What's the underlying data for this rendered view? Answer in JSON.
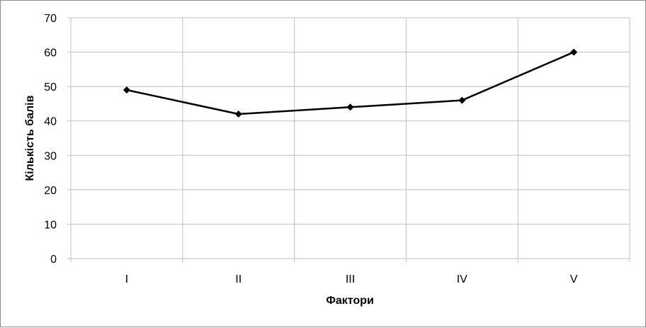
{
  "chart_data": {
    "type": "line",
    "title": "",
    "xlabel": "Фактори",
    "ylabel": "Кількість балів",
    "categories": [
      "I",
      "II",
      "III",
      "IV",
      "V"
    ],
    "series": [
      {
        "values": [
          49,
          42,
          44,
          46,
          60
        ]
      }
    ],
    "ylim": [
      0,
      70
    ],
    "yticks": [
      0,
      10,
      20,
      30,
      40,
      50,
      60,
      70
    ],
    "grid": true,
    "legend": "none",
    "colors": {
      "line": "#000000",
      "grid": "#bfbfbf",
      "marker": "#000000"
    },
    "marker": "diamond"
  }
}
